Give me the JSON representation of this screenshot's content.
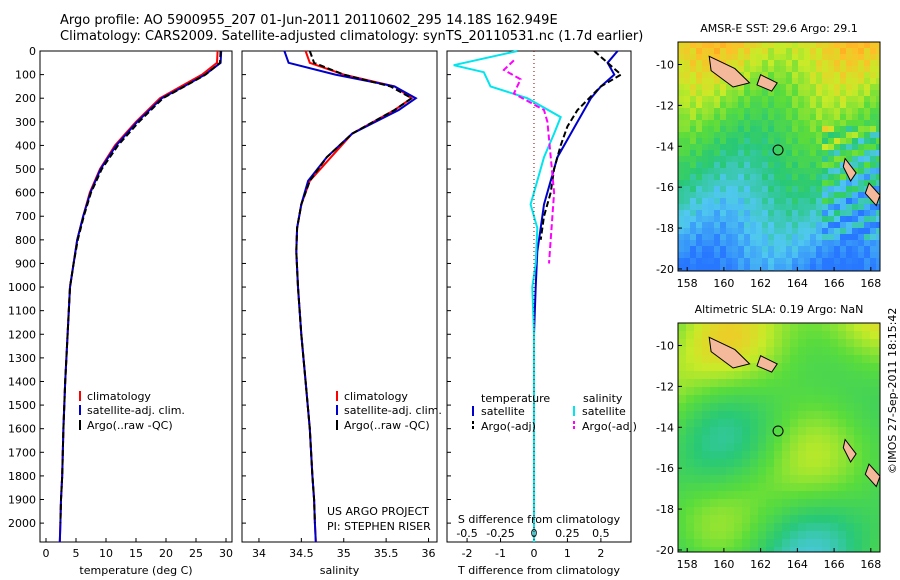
{
  "header": {
    "line1": "Argo profile: AO 5900955_207 01-Jun-2011 20110602_295 14.18S 162.949E",
    "line2": "Climatology: CARS2009. Satellite-adjusted climatology: synTS_20110531.nc (1.7d earlier)"
  },
  "credit": "©IMOS 27-Sep-2011 18:15:42",
  "colors": {
    "climatology": "#ff0000",
    "satellite": "#0000cc",
    "argo": "#000000",
    "sat_salinity": "#00e5ee",
    "argo_salinity": "#ff00ff"
  },
  "chart_data": [
    {
      "type": "line",
      "panel": "temperature",
      "xlabel": "temperature (deg C)",
      "xlim": [
        -1,
        31
      ],
      "ylim": [
        2080,
        0
      ],
      "xticks": [
        "0",
        "5",
        "10",
        "15",
        "20",
        "25",
        "30"
      ],
      "yticks": [
        "0",
        "100",
        "200",
        "300",
        "400",
        "500",
        "600",
        "700",
        "800",
        "900",
        "1000",
        "1100",
        "1200",
        "1300",
        "1400",
        "1500",
        "1600",
        "1700",
        "1800",
        "1900",
        "2000"
      ],
      "legend": [
        "climatology",
        "satellite-adj. clim.",
        "Argo(..raw -QC)"
      ],
      "series": [
        {
          "name": "climatology",
          "color": "#ff0000",
          "x": [
            28.6,
            28.5,
            26,
            22.5,
            19,
            15,
            11.5,
            9,
            7.3,
            6.2,
            5.2,
            4.6,
            4.0,
            3.6,
            3.2,
            2.9,
            2.7,
            2.5,
            2.4,
            2.3
          ],
          "y": [
            0,
            50,
            100,
            150,
            200,
            300,
            400,
            500,
            600,
            700,
            800,
            900,
            1000,
            1200,
            1400,
            1600,
            1800,
            1900,
            2000,
            2080
          ]
        },
        {
          "name": "satellite-adj. clim.",
          "color": "#0000cc",
          "x": [
            29.2,
            29.1,
            26.5,
            23,
            19.3,
            15.2,
            11.7,
            9.1,
            7.4,
            6.2,
            5.2,
            4.6,
            4.0,
            3.6,
            3.2,
            2.9,
            2.7,
            2.5,
            2.4,
            2.3
          ],
          "y": [
            0,
            50,
            100,
            150,
            200,
            300,
            400,
            500,
            600,
            700,
            800,
            900,
            1000,
            1200,
            1400,
            1600,
            1800,
            1900,
            2000,
            2080
          ]
        },
        {
          "name": "Argo(..raw -QC)",
          "color": "#000000",
          "x": [
            29.1,
            29.0,
            26.6,
            23.1,
            19.5,
            15.5,
            12,
            9.3,
            7.5,
            6.3,
            5.3,
            4.6,
            4.0,
            3.6,
            3.2,
            2.9,
            2.7,
            2.5,
            2.4
          ],
          "y": [
            0,
            50,
            100,
            150,
            200,
            300,
            400,
            500,
            600,
            700,
            800,
            900,
            1000,
            1200,
            1400,
            1600,
            1800,
            1900,
            2000
          ]
        }
      ]
    },
    {
      "type": "line",
      "panel": "salinity",
      "xlabel": "salinity",
      "xlim": [
        33.8,
        36.1
      ],
      "ylim": [
        2080,
        0
      ],
      "xticks": [
        "34",
        "34.5",
        "35",
        "35.5",
        "36"
      ],
      "legend": [
        "climatology",
        "satellite-adj. clim.",
        "Argo(..raw -QC)"
      ],
      "annotation": [
        "US ARGO PROJECT",
        "PI: STEPHEN RISER"
      ],
      "series": [
        {
          "name": "climatology",
          "color": "#ff0000",
          "x": [
            34.55,
            34.6,
            35.0,
            35.6,
            35.8,
            35.6,
            35.1,
            34.85,
            34.6,
            34.5,
            34.45,
            34.44,
            34.46,
            34.5,
            34.55,
            34.6,
            34.63,
            34.65,
            34.66,
            34.67
          ],
          "y": [
            0,
            50,
            100,
            150,
            200,
            250,
            350,
            450,
            550,
            650,
            750,
            850,
            1000,
            1200,
            1400,
            1600,
            1800,
            1900,
            2000,
            2080
          ]
        },
        {
          "name": "satellite-adj. clim.",
          "color": "#0000cc",
          "x": [
            34.3,
            34.35,
            34.9,
            35.6,
            35.85,
            35.65,
            35.1,
            34.8,
            34.58,
            34.5,
            34.45,
            34.44,
            34.46,
            34.5,
            34.55,
            34.6,
            34.63,
            34.65,
            34.66,
            34.67
          ],
          "y": [
            0,
            50,
            100,
            150,
            200,
            250,
            350,
            450,
            550,
            650,
            750,
            850,
            1000,
            1200,
            1400,
            1600,
            1800,
            1900,
            2000,
            2080
          ]
        },
        {
          "name": "Argo(..raw -QC)",
          "color": "#000000",
          "x": [
            34.6,
            34.65,
            35.0,
            35.55,
            35.8,
            35.6,
            35.1,
            34.8,
            34.6,
            34.5,
            34.45,
            34.44,
            34.46,
            34.5,
            34.55,
            34.6,
            34.63,
            34.65,
            34.66
          ],
          "y": [
            0,
            50,
            100,
            150,
            200,
            250,
            350,
            450,
            550,
            650,
            750,
            850,
            1000,
            1200,
            1400,
            1600,
            1800,
            1900,
            2000
          ]
        }
      ]
    },
    {
      "type": "line",
      "panel": "difference",
      "xlabel": "T difference from climatology",
      "xlabel_top": "S difference from climatology",
      "xlim": [
        -2.6,
        2.9
      ],
      "ylim": [
        2080,
        0
      ],
      "xticks": [
        "-2",
        "-1",
        "0",
        "1",
        "2"
      ],
      "xticks_s": [
        "-0.5",
        "-0.25",
        "0",
        "0.25",
        "0.5"
      ],
      "legend_left": [
        "temperature",
        "satellite",
        "Argo(-adj)"
      ],
      "legend_right": [
        "salinity",
        "satellite",
        "Argo(-adj)"
      ],
      "series": [
        {
          "name": "satellite",
          "color": "#0000cc",
          "x": [
            2.5,
            2.2,
            2.4,
            2.0,
            1.7,
            1.5,
            1.1,
            0.7,
            0.5,
            0.3,
            0.2,
            0.1,
            0.05,
            0,
            0,
            0,
            0,
            0
          ],
          "y": [
            0,
            50,
            100,
            150,
            200,
            250,
            350,
            450,
            550,
            650,
            750,
            850,
            1000,
            1200,
            1400,
            1600,
            1800,
            2080
          ]
        },
        {
          "name": "Argo(-adj)",
          "color": "#000000",
          "x": [
            1.8,
            2.2,
            2.6,
            2.0,
            1.3,
            1.0,
            0.8,
            0.6,
            0.5,
            0.3,
            0.2
          ],
          "y": [
            0,
            50,
            100,
            150,
            250,
            320,
            400,
            500,
            600,
            700,
            800
          ]
        },
        {
          "name": "satellite",
          "color": "#00e5ee",
          "x": [
            -0.5,
            -2.4,
            -1.5,
            -1.3,
            -0.2,
            0.8,
            0.6,
            0.3,
            0.1,
            -0.1,
            0.1,
            0.05,
            -0.05,
            0,
            0,
            0,
            0
          ],
          "y": [
            0,
            60,
            90,
            150,
            200,
            280,
            350,
            450,
            550,
            650,
            750,
            900,
            1000,
            1200,
            1400,
            1700,
            2080
          ]
        },
        {
          "name": "Argo(-adj)",
          "color": "#ff00ff",
          "x": [
            -0.6,
            -0.9,
            -0.4,
            -0.6,
            0.3,
            0.4,
            0.6,
            0.5,
            0.45
          ],
          "y": [
            40,
            80,
            120,
            180,
            250,
            300,
            600,
            800,
            900
          ]
        }
      ]
    },
    {
      "type": "heatmap",
      "panel": "sst-map",
      "title": "AMSR-E SST: 29.6 Argo: 29.1",
      "xlim": [
        157.5,
        168.5
      ],
      "ylim": [
        -20.1,
        -8.9
      ],
      "xticks": [
        "158",
        "160",
        "162",
        "164",
        "166",
        "168"
      ],
      "yticks": [
        "-10",
        "-12",
        "-14",
        "-16",
        "-18",
        "-20"
      ],
      "argo_position": [
        162.949,
        -14.18
      ]
    },
    {
      "type": "heatmap",
      "panel": "sla-map",
      "title": "Altimetric SLA: 0.19 Argo: NaN",
      "xlim": [
        157.5,
        168.5
      ],
      "ylim": [
        -20.1,
        -8.9
      ],
      "xticks": [
        "158",
        "160",
        "162",
        "164",
        "166",
        "168"
      ],
      "yticks": [
        "-10",
        "-12",
        "-14",
        "-16",
        "-18",
        "-20"
      ],
      "argo_position": [
        162.949,
        -14.18
      ]
    }
  ]
}
